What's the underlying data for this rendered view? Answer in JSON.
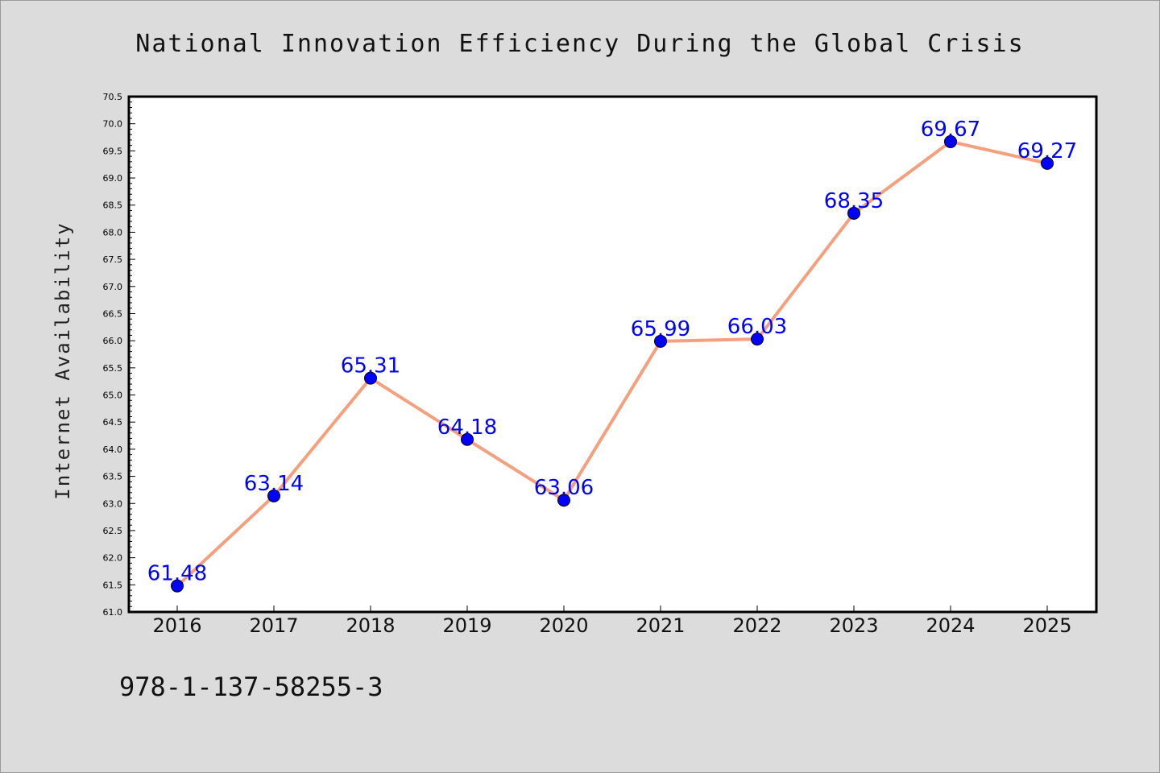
{
  "chart_data": {
    "type": "line",
    "title": "National Innovation Efficiency During the Global Crisis",
    "xlabel": "",
    "ylabel": "Internet Availability",
    "x": [
      "2016",
      "2017",
      "2018",
      "2019",
      "2020",
      "2021",
      "2022",
      "2023",
      "2024",
      "2025"
    ],
    "series": [
      {
        "values": [
          61.48,
          63.14,
          65.31,
          64.18,
          63.06,
          65.99,
          66.03,
          68.35,
          69.67,
          69.27
        ],
        "line_color": "#f4a07e",
        "marker_color": "#0000ff"
      }
    ],
    "data_labels": [
      "61.48",
      "63.14",
      "65.31",
      "64.18",
      "63.06",
      "65.99",
      "66.03",
      "68.35",
      "69.67",
      "69.27"
    ],
    "ylim": [
      61.0,
      70.5
    ],
    "yticks": [
      "61.0",
      "61.5",
      "62.0",
      "62.5",
      "63.0",
      "63.5",
      "64.0",
      "64.5",
      "65.0",
      "65.5",
      "66.0",
      "66.5",
      "67.0",
      "67.5",
      "68.0",
      "68.5",
      "69.0",
      "69.5",
      "70.0",
      "70.5"
    ],
    "grid": false,
    "legend": "none"
  },
  "annotation": {
    "isbn": "978-1-137-58255-3"
  }
}
